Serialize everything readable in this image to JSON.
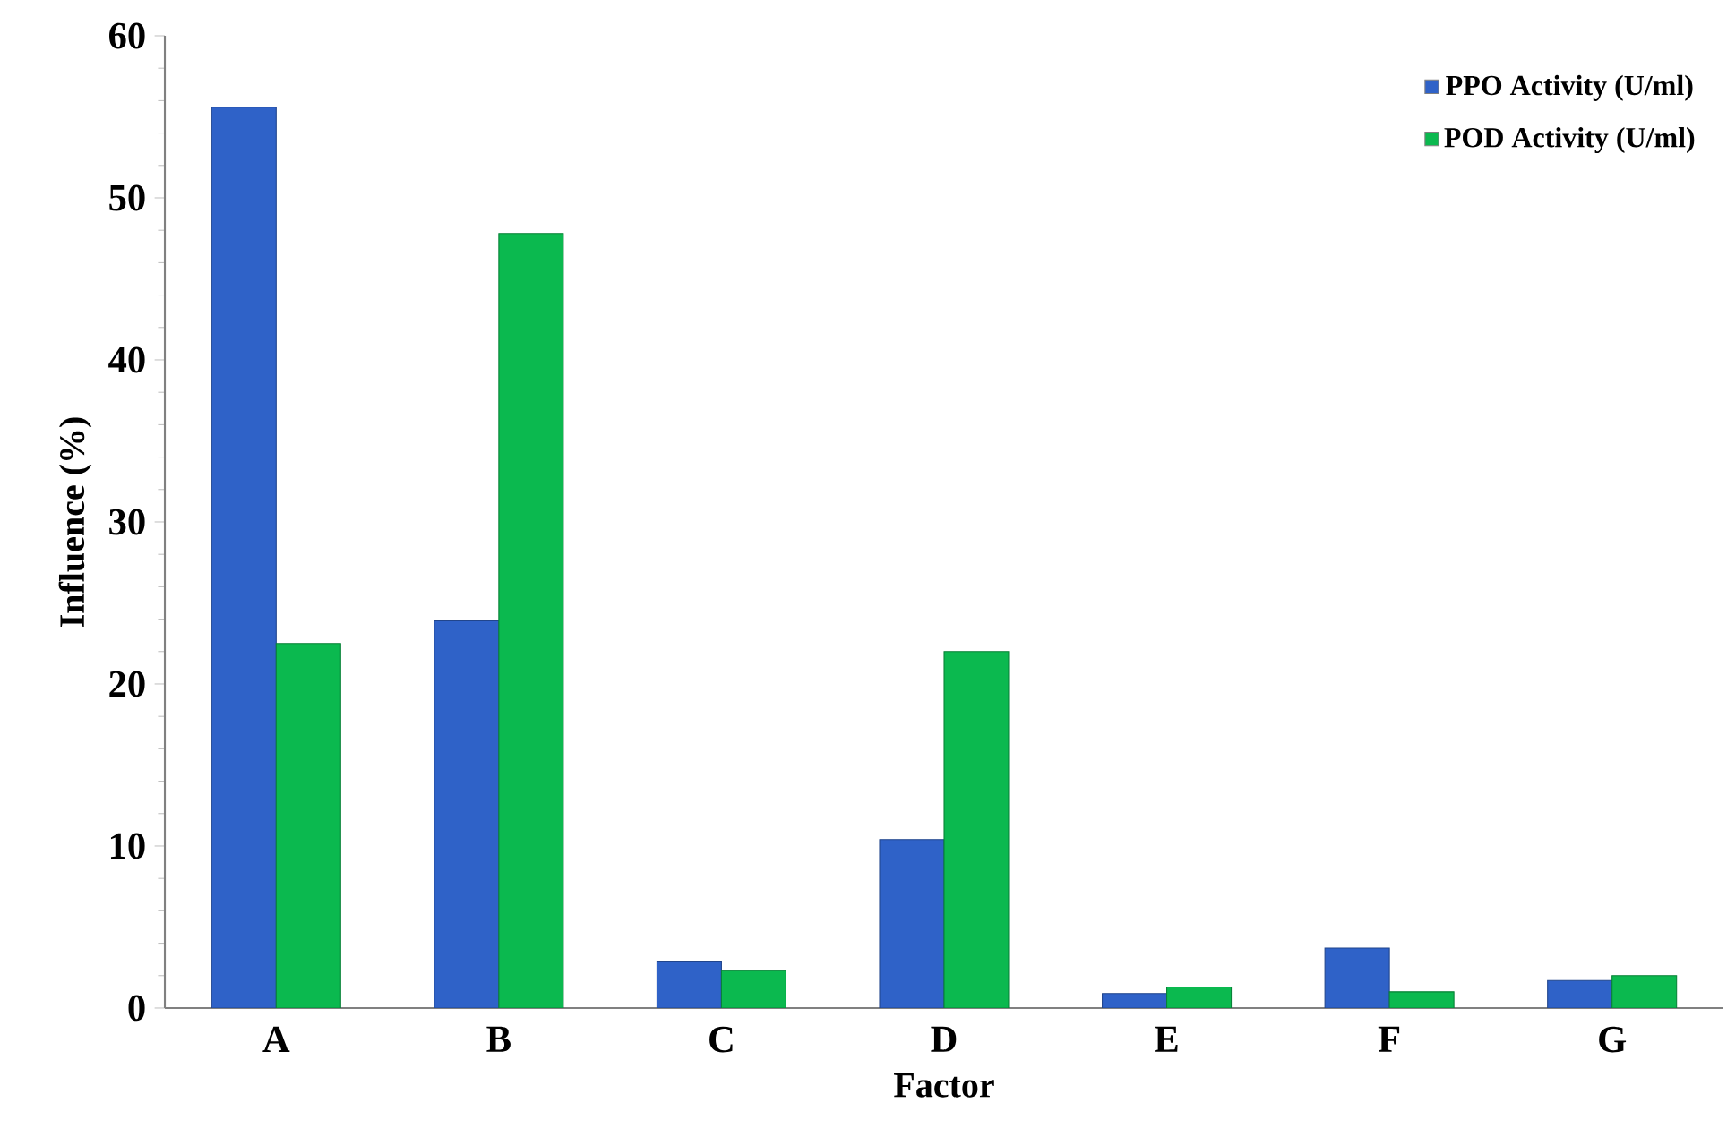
{
  "chart_data": {
    "type": "bar",
    "xlabel": "Factor",
    "ylabel": "Influence (%)",
    "categories": [
      "A",
      "B",
      "C",
      "D",
      "E",
      "F",
      "G"
    ],
    "series": [
      {
        "name": "PPO Activity (U/ml)",
        "color": "#2f62c8",
        "values": [
          55.6,
          23.9,
          2.9,
          10.4,
          0.9,
          3.7,
          1.7
        ]
      },
      {
        "name": "POD Activity (U/ml)",
        "color": "#0bb94f",
        "values": [
          22.5,
          47.8,
          2.3,
          22.0,
          1.3,
          1.0,
          2.0
        ]
      }
    ],
    "ylim": [
      0,
      60
    ],
    "yticks": [
      0,
      10,
      20,
      30,
      40,
      50,
      60
    ],
    "grid": false,
    "legend": "top right"
  }
}
